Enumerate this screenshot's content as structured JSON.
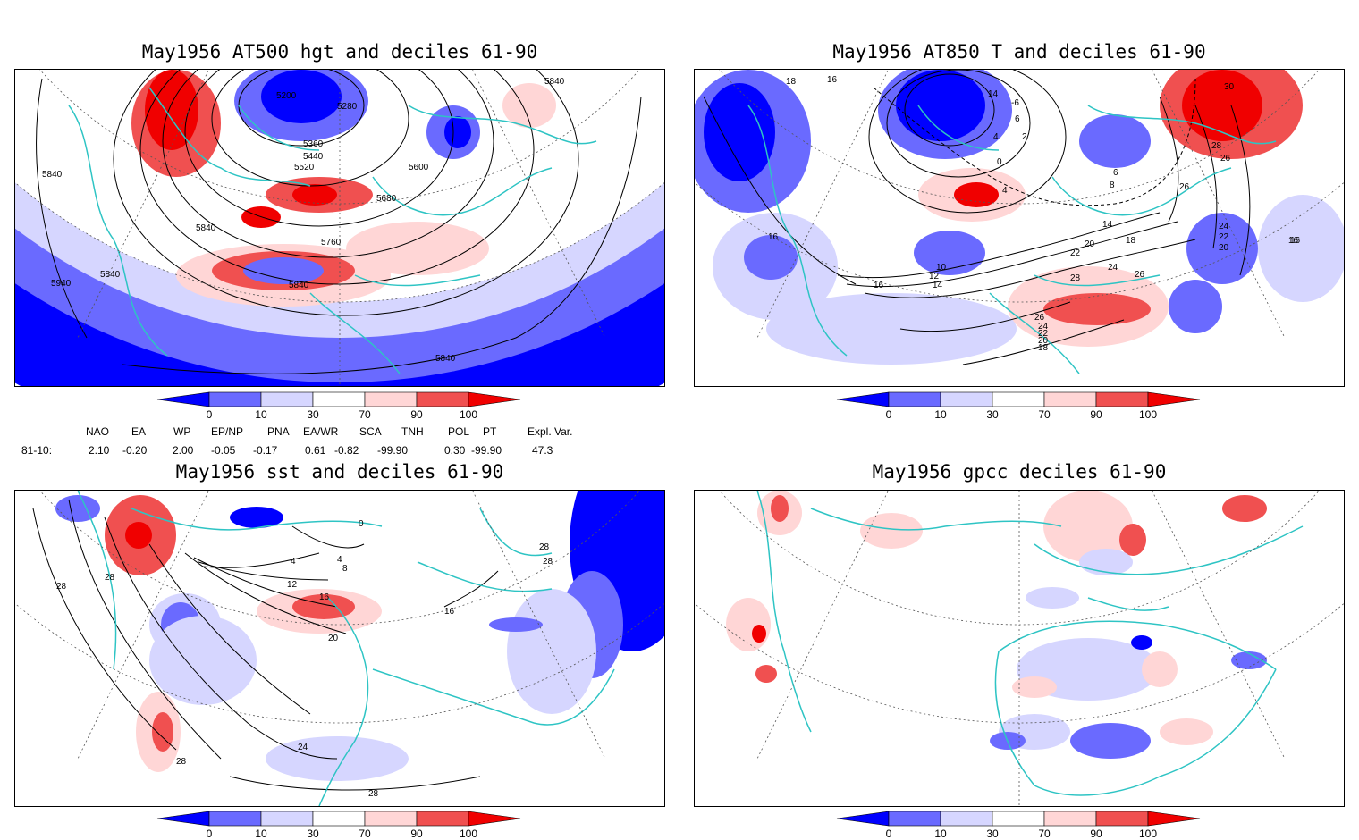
{
  "colors": {
    "deep_blue": "#0000ff",
    "mid_blue": "#6a6aff",
    "light_blue": "#d6d6ff",
    "light_red": "#ffd6d6",
    "mid_red": "#f05050",
    "deep_red": "#f00000",
    "coast": "#2ec4c4",
    "contour": "#000000"
  },
  "colorbar_labels": [
    "0",
    "10",
    "30",
    "70",
    "90",
    "100"
  ],
  "panels": {
    "tl": {
      "title": "May1956 AT500 hgt and deciles 61-90",
      "contour_labels": [
        "5840",
        "5940",
        "5840",
        "5200",
        "5280",
        "5840",
        "5360",
        "5440",
        "5520",
        "5600",
        "5680",
        "5840",
        "5760",
        "5840",
        "5840"
      ]
    },
    "tr": {
      "title": "May1956 AT850 T and deciles 61-90",
      "contour_labels": [
        "18",
        "16",
        "14",
        "-6",
        "6",
        "4",
        "2",
        "0",
        "4",
        "6",
        "8",
        "30",
        "28",
        "26",
        "26",
        "24",
        "22",
        "20",
        "16",
        "16",
        "10",
        "12",
        "14",
        "14",
        "16",
        "20",
        "22",
        "18",
        "24",
        "28",
        "26",
        "26",
        "24",
        "22",
        "20",
        "18",
        "16"
      ]
    },
    "bl": {
      "title": "May1956 sst and deciles 61-90",
      "contour_labels": [
        "28",
        "28",
        "0",
        "4",
        "4",
        "8",
        "12",
        "16",
        "20",
        "16",
        "24",
        "28",
        "28",
        "28",
        "28"
      ]
    },
    "br": {
      "title": "May1956 gpcc deciles 61-90"
    }
  },
  "indices": {
    "headers": [
      "NAO",
      "EA",
      "WP",
      "EP/NP",
      "PNA",
      "EA/WR",
      "SCA",
      "TNH",
      "POL",
      "PT",
      "Expl. Var."
    ],
    "row_label": "81-10:",
    "values": [
      "2.10",
      "-0.20",
      "2.00",
      "-0.05",
      "-0.17",
      "0.61",
      "-0.82",
      "-99.90",
      "0.30",
      "-99.90",
      "47.3"
    ]
  }
}
